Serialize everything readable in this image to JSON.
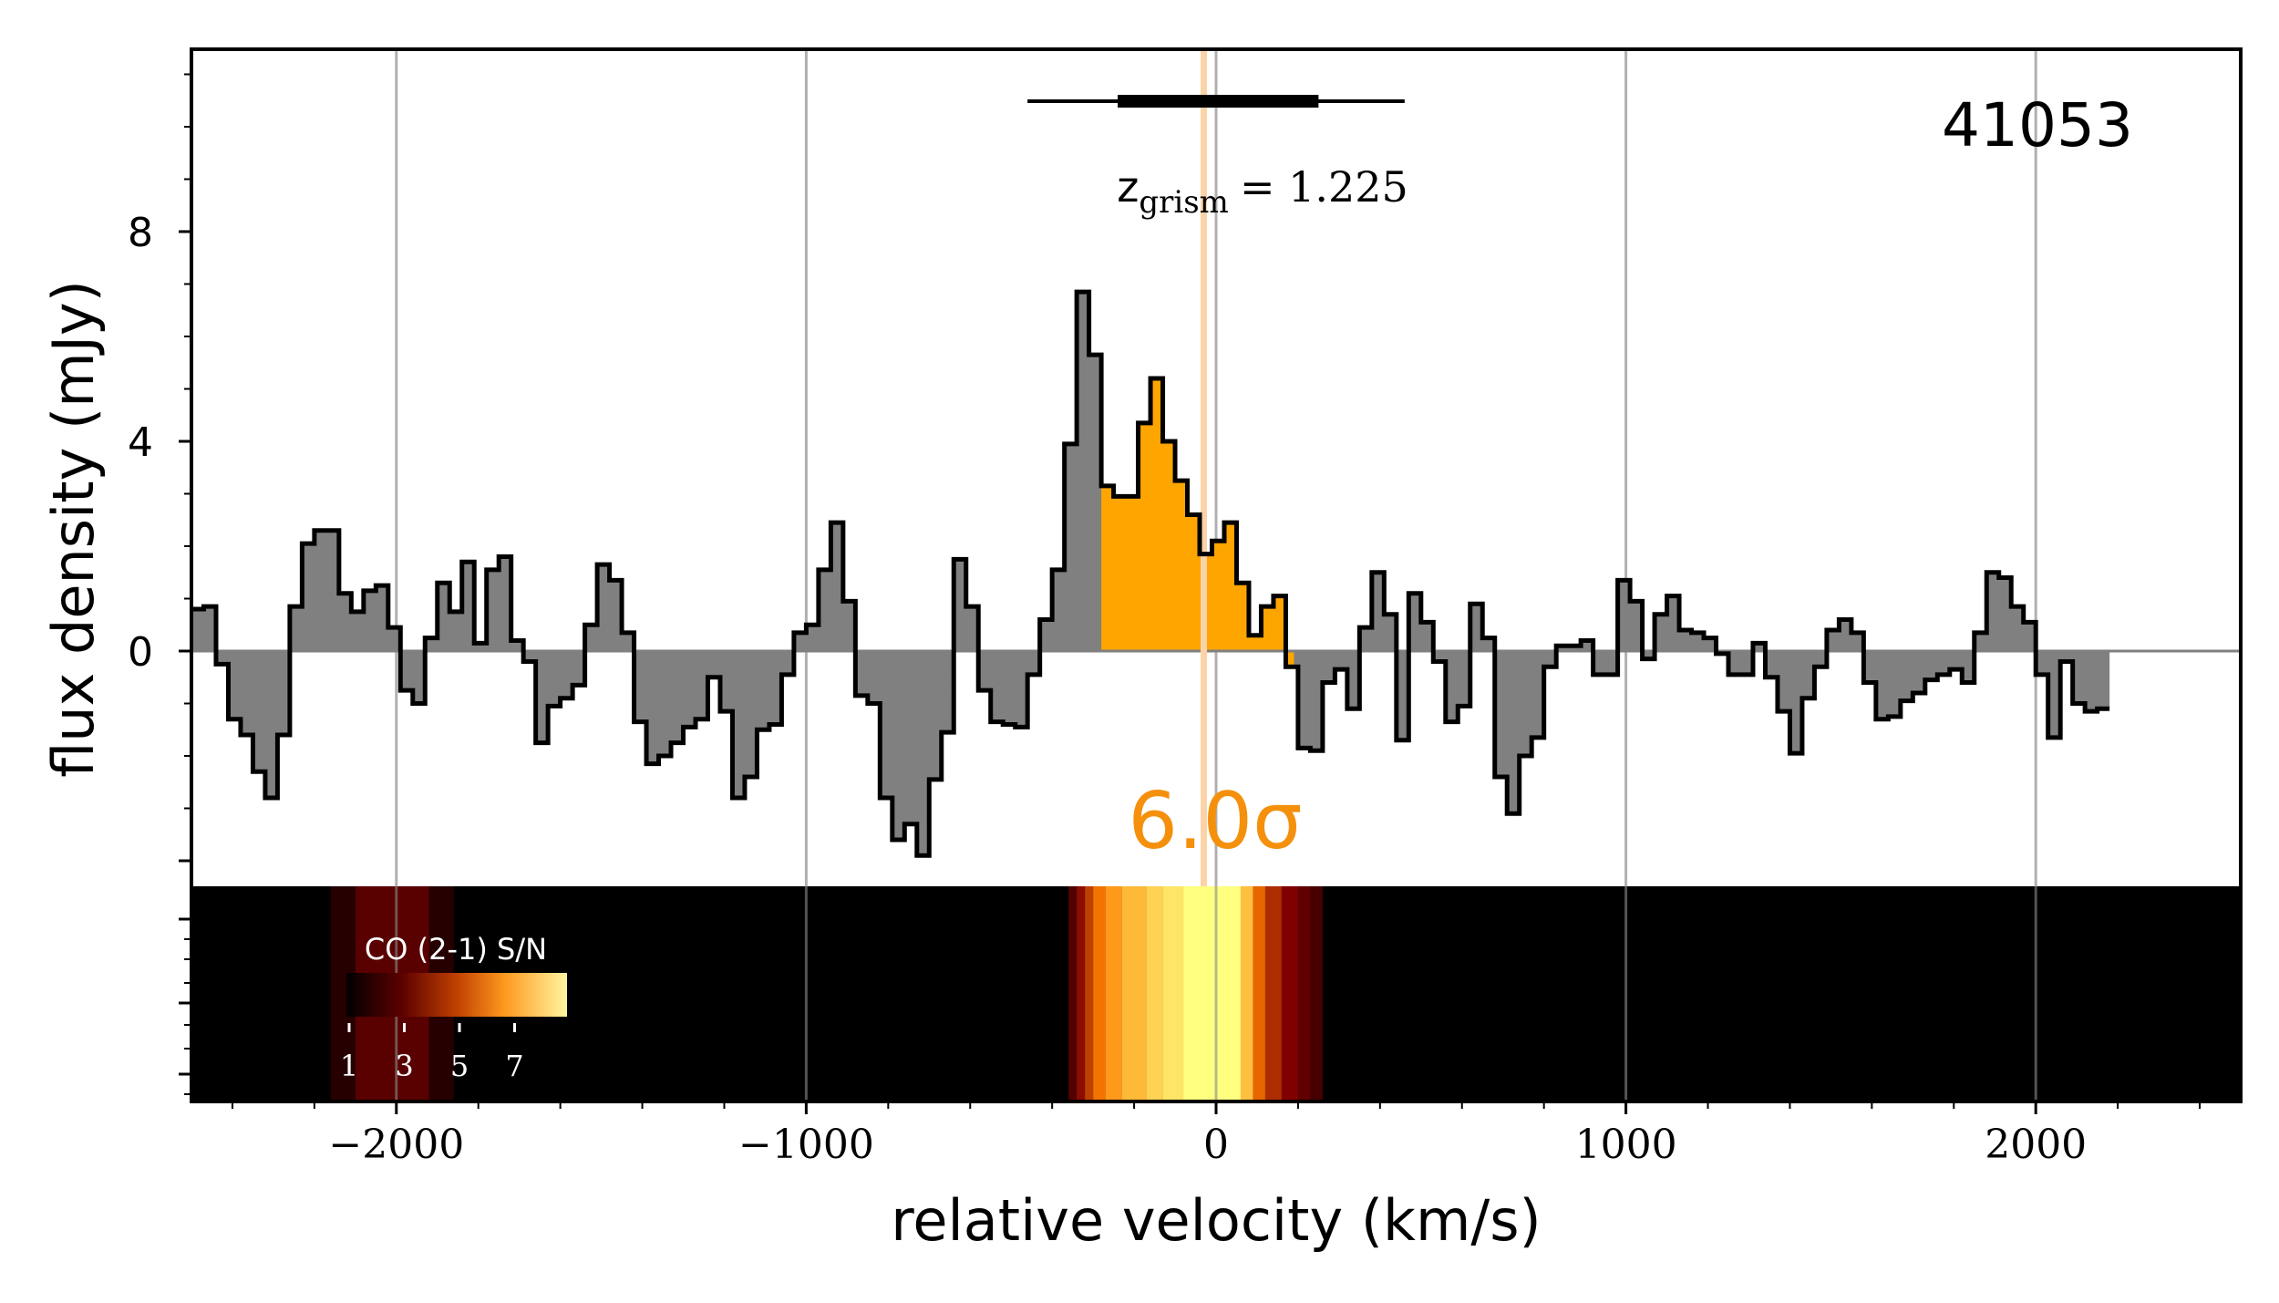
{
  "chart_data": {
    "type": "step-histogram",
    "xlabel": "relative velocity (km/s)",
    "ylabel": "flux density (mJy)",
    "xlim": [
      -2500,
      2500
    ],
    "ylim": [
      -4.5,
      11.5
    ],
    "x_ticks": [
      -2000,
      -1000,
      0,
      1000,
      2000
    ],
    "x_tick_labels": [
      "−2000",
      "−1000",
      "0",
      "1000",
      "2000"
    ],
    "y_ticks": [
      0,
      4,
      8
    ],
    "y_tick_labels": [
      "0",
      "4",
      "8"
    ],
    "y_extra_major_ticks": [
      -4
    ],
    "grid": "vertical lines at x ticks",
    "object_id": "41053",
    "redshift_label": {
      "prefix": "z",
      "subscript": "grism",
      "value": "= 1.225"
    },
    "redshift_velocity": -30,
    "redshift_error_bars": {
      "inner": [
        -240,
        250
      ],
      "outer": [
        -460,
        460
      ]
    },
    "significance_label": "6.0σ",
    "line_window": [
      -280,
      190
    ],
    "bin_edges_start": -2500,
    "bin_width": 30,
    "flux_values": [
      0.8,
      0.85,
      -0.25,
      -1.3,
      -1.6,
      -2.3,
      -2.8,
      -1.6,
      0.85,
      2.05,
      2.3,
      2.3,
      1.1,
      0.75,
      1.15,
      1.25,
      0.45,
      -0.75,
      -1.0,
      0.25,
      1.3,
      0.75,
      1.7,
      0.15,
      1.55,
      1.8,
      0.2,
      -0.2,
      -1.75,
      -1.05,
      -0.9,
      -0.65,
      0.5,
      1.65,
      1.35,
      0.35,
      -1.35,
      -2.15,
      -2.0,
      -1.75,
      -1.45,
      -1.3,
      -0.5,
      -1.15,
      -2.8,
      -2.4,
      -1.5,
      -1.4,
      -0.45,
      0.35,
      0.5,
      1.55,
      2.45,
      0.95,
      -0.85,
      -1.0,
      -2.8,
      -3.6,
      -3.3,
      -3.9,
      -2.45,
      -1.55,
      1.75,
      0.85,
      -0.75,
      -1.35,
      -1.4,
      -1.45,
      -0.45,
      0.6,
      1.55,
      3.95,
      6.85,
      5.65,
      3.15,
      2.95,
      2.95,
      4.35,
      5.2,
      4.0,
      3.25,
      2.6,
      1.85,
      2.1,
      2.45,
      1.3,
      0.3,
      0.85,
      1.05,
      -0.3,
      -1.85,
      -1.9,
      -0.6,
      -0.35,
      -1.1,
      0.45,
      1.5,
      0.7,
      -1.7,
      1.1,
      0.55,
      -0.2,
      -1.35,
      -1.05,
      0.9,
      0.25,
      -2.4,
      -3.1,
      -2.0,
      -1.65,
      -0.3,
      0.1,
      0.1,
      0.2,
      -0.45,
      -0.45,
      1.35,
      0.95,
      -0.15,
      0.7,
      1.05,
      0.4,
      0.35,
      0.25,
      -0.05,
      -0.45,
      -0.45,
      0.15,
      -0.5,
      -1.15,
      -1.95,
      -0.9,
      -0.3,
      0.4,
      0.6,
      0.35,
      -0.6,
      -1.3,
      -1.25,
      -0.95,
      -0.8,
      -0.55,
      -0.45,
      -0.35,
      -0.6,
      0.35,
      1.5,
      1.4,
      0.85,
      0.55,
      -0.45,
      -1.65,
      -0.2,
      -1.0,
      -1.15,
      -1.1
    ],
    "strip": {
      "label": "CO (2-1) S/N",
      "colormap": "afmhot",
      "colorbar_ticks": [
        "1",
        "3",
        "5",
        "7"
      ],
      "sn_profile": [
        {
          "v": [
            -2500,
            -2160
          ],
          "sn": 0
        },
        {
          "v": [
            -2160,
            -2100
          ],
          "sn": 0.6
        },
        {
          "v": [
            -2100,
            -1920
          ],
          "sn": 1.4
        },
        {
          "v": [
            -1920,
            -1860
          ],
          "sn": 0.6
        },
        {
          "v": [
            -1860,
            -360
          ],
          "sn": 0
        },
        {
          "v": [
            -360,
            -340
          ],
          "sn": 1.3
        },
        {
          "v": [
            -340,
            -320
          ],
          "sn": 2.2
        },
        {
          "v": [
            -320,
            -300
          ],
          "sn": 3.0
        },
        {
          "v": [
            -300,
            -270
          ],
          "sn": 3.8
        },
        {
          "v": [
            -270,
            -230
          ],
          "sn": 4.4
        },
        {
          "v": [
            -230,
            -170
          ],
          "sn": 4.9
        },
        {
          "v": [
            -170,
            -130
          ],
          "sn": 5.3
        },
        {
          "v": [
            -130,
            -80
          ],
          "sn": 5.6
        },
        {
          "v": [
            -80,
            60
          ],
          "sn": 6.0
        },
        {
          "v": [
            60,
            90
          ],
          "sn": 5.0
        },
        {
          "v": [
            90,
            120
          ],
          "sn": 3.6
        },
        {
          "v": [
            120,
            160
          ],
          "sn": 2.7
        },
        {
          "v": [
            160,
            200
          ],
          "sn": 2.0
        },
        {
          "v": [
            200,
            230
          ],
          "sn": 1.5
        },
        {
          "v": [
            230,
            260
          ],
          "sn": 1.1
        },
        {
          "v": [
            260,
            2500
          ],
          "sn": 0
        }
      ]
    }
  },
  "colors": {
    "emission_fill": "#ffa500",
    "negative_fill": "#808080",
    "outline": "#000000",
    "redshift_line": "#fcd3a8",
    "significance_text": "#f5900c",
    "grid": "#b0b0b0"
  }
}
